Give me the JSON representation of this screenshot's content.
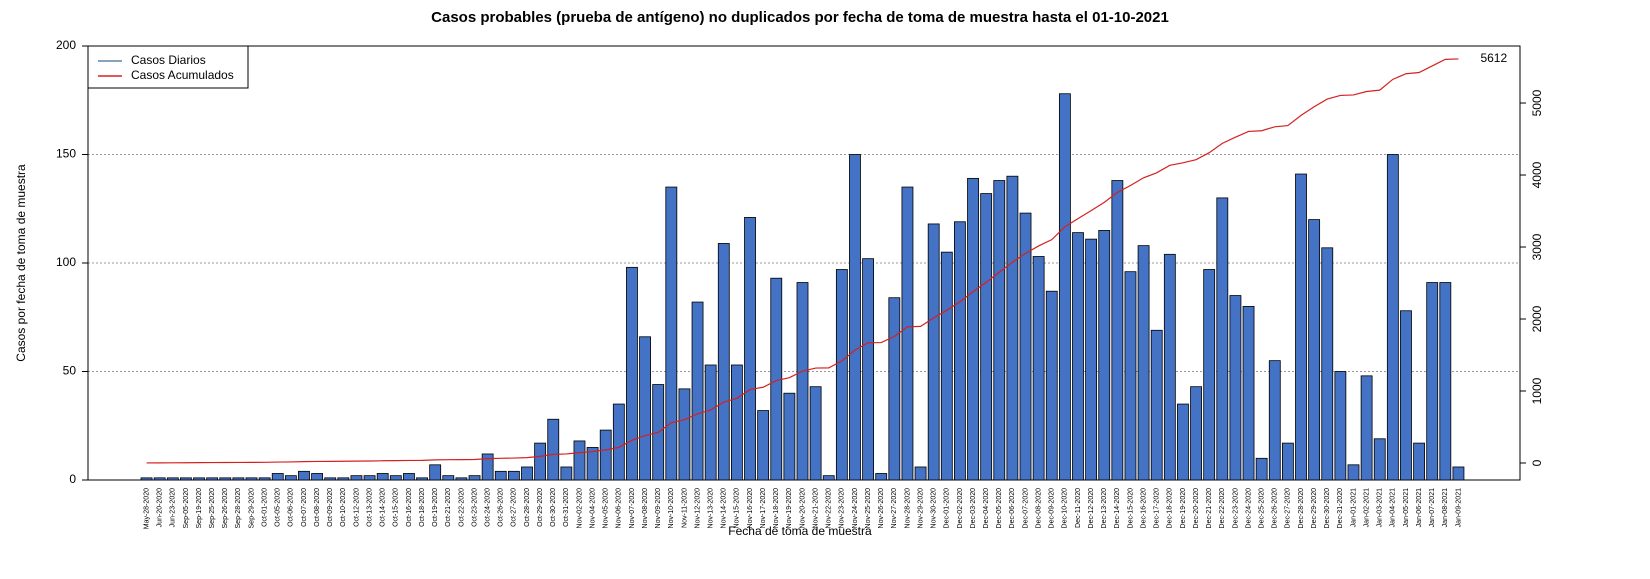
{
  "chart_data": {
    "type": "bar_line",
    "title": "Casos probables (prueba de antígeno) no duplicados por fecha de toma de muestra hasta el 01-10-2021",
    "x_label": "Fecha de toma de muestra",
    "y_label": "Casos por fecha de toma de muestra",
    "categories": [
      "May-28-2020",
      "Jun-20-2020",
      "Jun-23-2020",
      "Sep-05-2020",
      "Sep-19-2020",
      "Sep-25-2020",
      "Sep-26-2020",
      "Sep-28-2020",
      "Sep-29-2020",
      "Oct-01-2020",
      "Oct-05-2020",
      "Oct-06-2020",
      "Oct-07-2020",
      "Oct-08-2020",
      "Oct-09-2020",
      "Oct-10-2020",
      "Oct-12-2020",
      "Oct-13-2020",
      "Oct-14-2020",
      "Oct-15-2020",
      "Oct-16-2020",
      "Oct-18-2020",
      "Oct-19-2020",
      "Oct-21-2020",
      "Oct-22-2020",
      "Oct-23-2020",
      "Oct-24-2020",
      "Oct-26-2020",
      "Oct-27-2020",
      "Oct-28-2020",
      "Oct-29-2020",
      "Oct-30-2020",
      "Oct-31-2020",
      "Nov-02-2020",
      "Nov-04-2020",
      "Nov-05-2020",
      "Nov-06-2020",
      "Nov-07-2020",
      "Nov-08-2020",
      "Nov-09-2020",
      "Nov-10-2020",
      "Nov-11-2020",
      "Nov-12-2020",
      "Nov-13-2020",
      "Nov-14-2020",
      "Nov-15-2020",
      "Nov-16-2020",
      "Nov-17-2020",
      "Nov-18-2020",
      "Nov-19-2020",
      "Nov-20-2020",
      "Nov-21-2020",
      "Nov-22-2020",
      "Nov-23-2020",
      "Nov-24-2020",
      "Nov-25-2020",
      "Nov-26-2020",
      "Nov-27-2020",
      "Nov-28-2020",
      "Nov-29-2020",
      "Nov-30-2020",
      "Dec-01-2020",
      "Dec-02-2020",
      "Dec-03-2020",
      "Dec-04-2020",
      "Dec-05-2020",
      "Dec-06-2020",
      "Dec-07-2020",
      "Dec-08-2020",
      "Dec-09-2020",
      "Dec-10-2020",
      "Dec-11-2020",
      "Dec-12-2020",
      "Dec-13-2020",
      "Dec-14-2020",
      "Dec-15-2020",
      "Dec-16-2020",
      "Dec-17-2020",
      "Dec-18-2020",
      "Dec-19-2020",
      "Dec-20-2020",
      "Dec-21-2020",
      "Dec-22-2020",
      "Dec-23-2020",
      "Dec-24-2020",
      "Dec-25-2020",
      "Dec-26-2020",
      "Dec-27-2020",
      "Dec-28-2020",
      "Dec-29-2020",
      "Dec-30-2020",
      "Dec-31-2020",
      "Jan-01-2021",
      "Jan-02-2021",
      "Jan-03-2021",
      "Jan-04-2021",
      "Jan-05-2021",
      "Jan-06-2021",
      "Jan-07-2021",
      "Jan-08-2021",
      "Jan-09-2021"
    ],
    "series": [
      {
        "name": "Casos Diarios",
        "color": "#4472c4",
        "legend_color": "#5f86a8",
        "values": [
          1,
          1,
          1,
          1,
          1,
          1,
          1,
          1,
          1,
          1,
          3,
          2,
          4,
          3,
          1,
          1,
          2,
          2,
          3,
          2,
          3,
          1,
          7,
          2,
          1,
          2,
          12,
          4,
          4,
          6,
          17,
          28,
          6,
          18,
          15,
          23,
          35,
          98,
          66,
          44,
          135,
          42,
          82,
          53,
          109,
          53,
          121,
          32,
          93,
          40,
          91,
          43,
          2,
          97,
          150,
          102,
          3,
          84,
          135,
          6,
          118,
          105,
          119,
          139,
          132,
          138,
          140,
          123,
          103,
          87,
          178,
          114,
          111,
          115,
          138,
          96,
          108,
          69,
          104,
          35,
          43,
          97,
          130,
          85,
          80,
          10,
          55,
          17,
          141,
          120,
          107,
          50,
          7,
          48,
          19,
          150,
          78,
          17,
          91,
          91,
          6
        ]
      },
      {
        "name": "Casos Acumulados",
        "color": "#d62020",
        "axis": "y2",
        "values": [
          1,
          2,
          3,
          4,
          5,
          6,
          7,
          8,
          9,
          10,
          13,
          15,
          19,
          22,
          23,
          24,
          26,
          28,
          31,
          33,
          36,
          37,
          44,
          46,
          47,
          49,
          61,
          65,
          69,
          75,
          92,
          120,
          126,
          144,
          159,
          182,
          217,
          315,
          381,
          425,
          560,
          602,
          684,
          737,
          846,
          899,
          1020,
          1052,
          1145,
          1185,
          1276,
          1319,
          1321,
          1418,
          1568,
          1670,
          1673,
          1757,
          1892,
          1898,
          2016,
          2121,
          2240,
          2379,
          2511,
          2649,
          2789,
          2912,
          3015,
          3102,
          3280,
          3394,
          3505,
          3620,
          3758,
          3854,
          3962,
          4031,
          4135,
          4170,
          4213,
          4310,
          4440,
          4525,
          4605,
          4615,
          4670,
          4687,
          4828,
          4948,
          5055,
          5105,
          5112,
          5160,
          5179,
          5329,
          5407,
          5424,
          5515,
          5606,
          5612
        ]
      }
    ],
    "ylim": [
      0,
      200
    ],
    "yticks": [
      0,
      50,
      100,
      150,
      200
    ],
    "y2lim": [
      -236,
      5792
    ],
    "y2ticks": [
      0,
      1000,
      2000,
      3000,
      4000,
      5000
    ],
    "grid": true,
    "legend": "upper left"
  }
}
